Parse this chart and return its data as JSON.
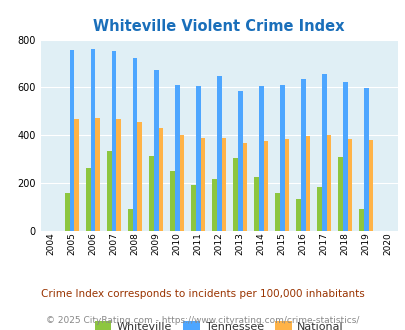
{
  "title": "Whiteville Violent Crime Index",
  "subtitle": "Crime Index corresponds to incidents per 100,000 inhabitants",
  "copyright": "© 2025 CityRating.com - https://www.cityrating.com/crime-statistics/",
  "years": [
    2004,
    2005,
    2006,
    2007,
    2008,
    2009,
    2010,
    2011,
    2012,
    2013,
    2014,
    2015,
    2016,
    2017,
    2018,
    2019,
    2020
  ],
  "whiteville": [
    0,
    158,
    262,
    335,
    90,
    313,
    250,
    192,
    218,
    305,
    224,
    158,
    135,
    183,
    310,
    90,
    0
  ],
  "tennessee": [
    0,
    756,
    762,
    754,
    722,
    671,
    612,
    607,
    646,
    587,
    607,
    611,
    634,
    656,
    622,
    599,
    0
  ],
  "national": [
    0,
    469,
    474,
    468,
    455,
    430,
    403,
    389,
    390,
    368,
    376,
    383,
    399,
    401,
    383,
    381,
    0
  ],
  "whiteville_color": "#8dc63f",
  "tennessee_color": "#4da6ff",
  "national_color": "#ffb347",
  "bg_color": "#e0eff5",
  "title_color": "#1a6fba",
  "subtitle_color": "#993300",
  "copyright_color": "#888888",
  "ylim": [
    0,
    800
  ],
  "yticks": [
    0,
    200,
    400,
    600,
    800
  ],
  "bar_width": 0.22
}
